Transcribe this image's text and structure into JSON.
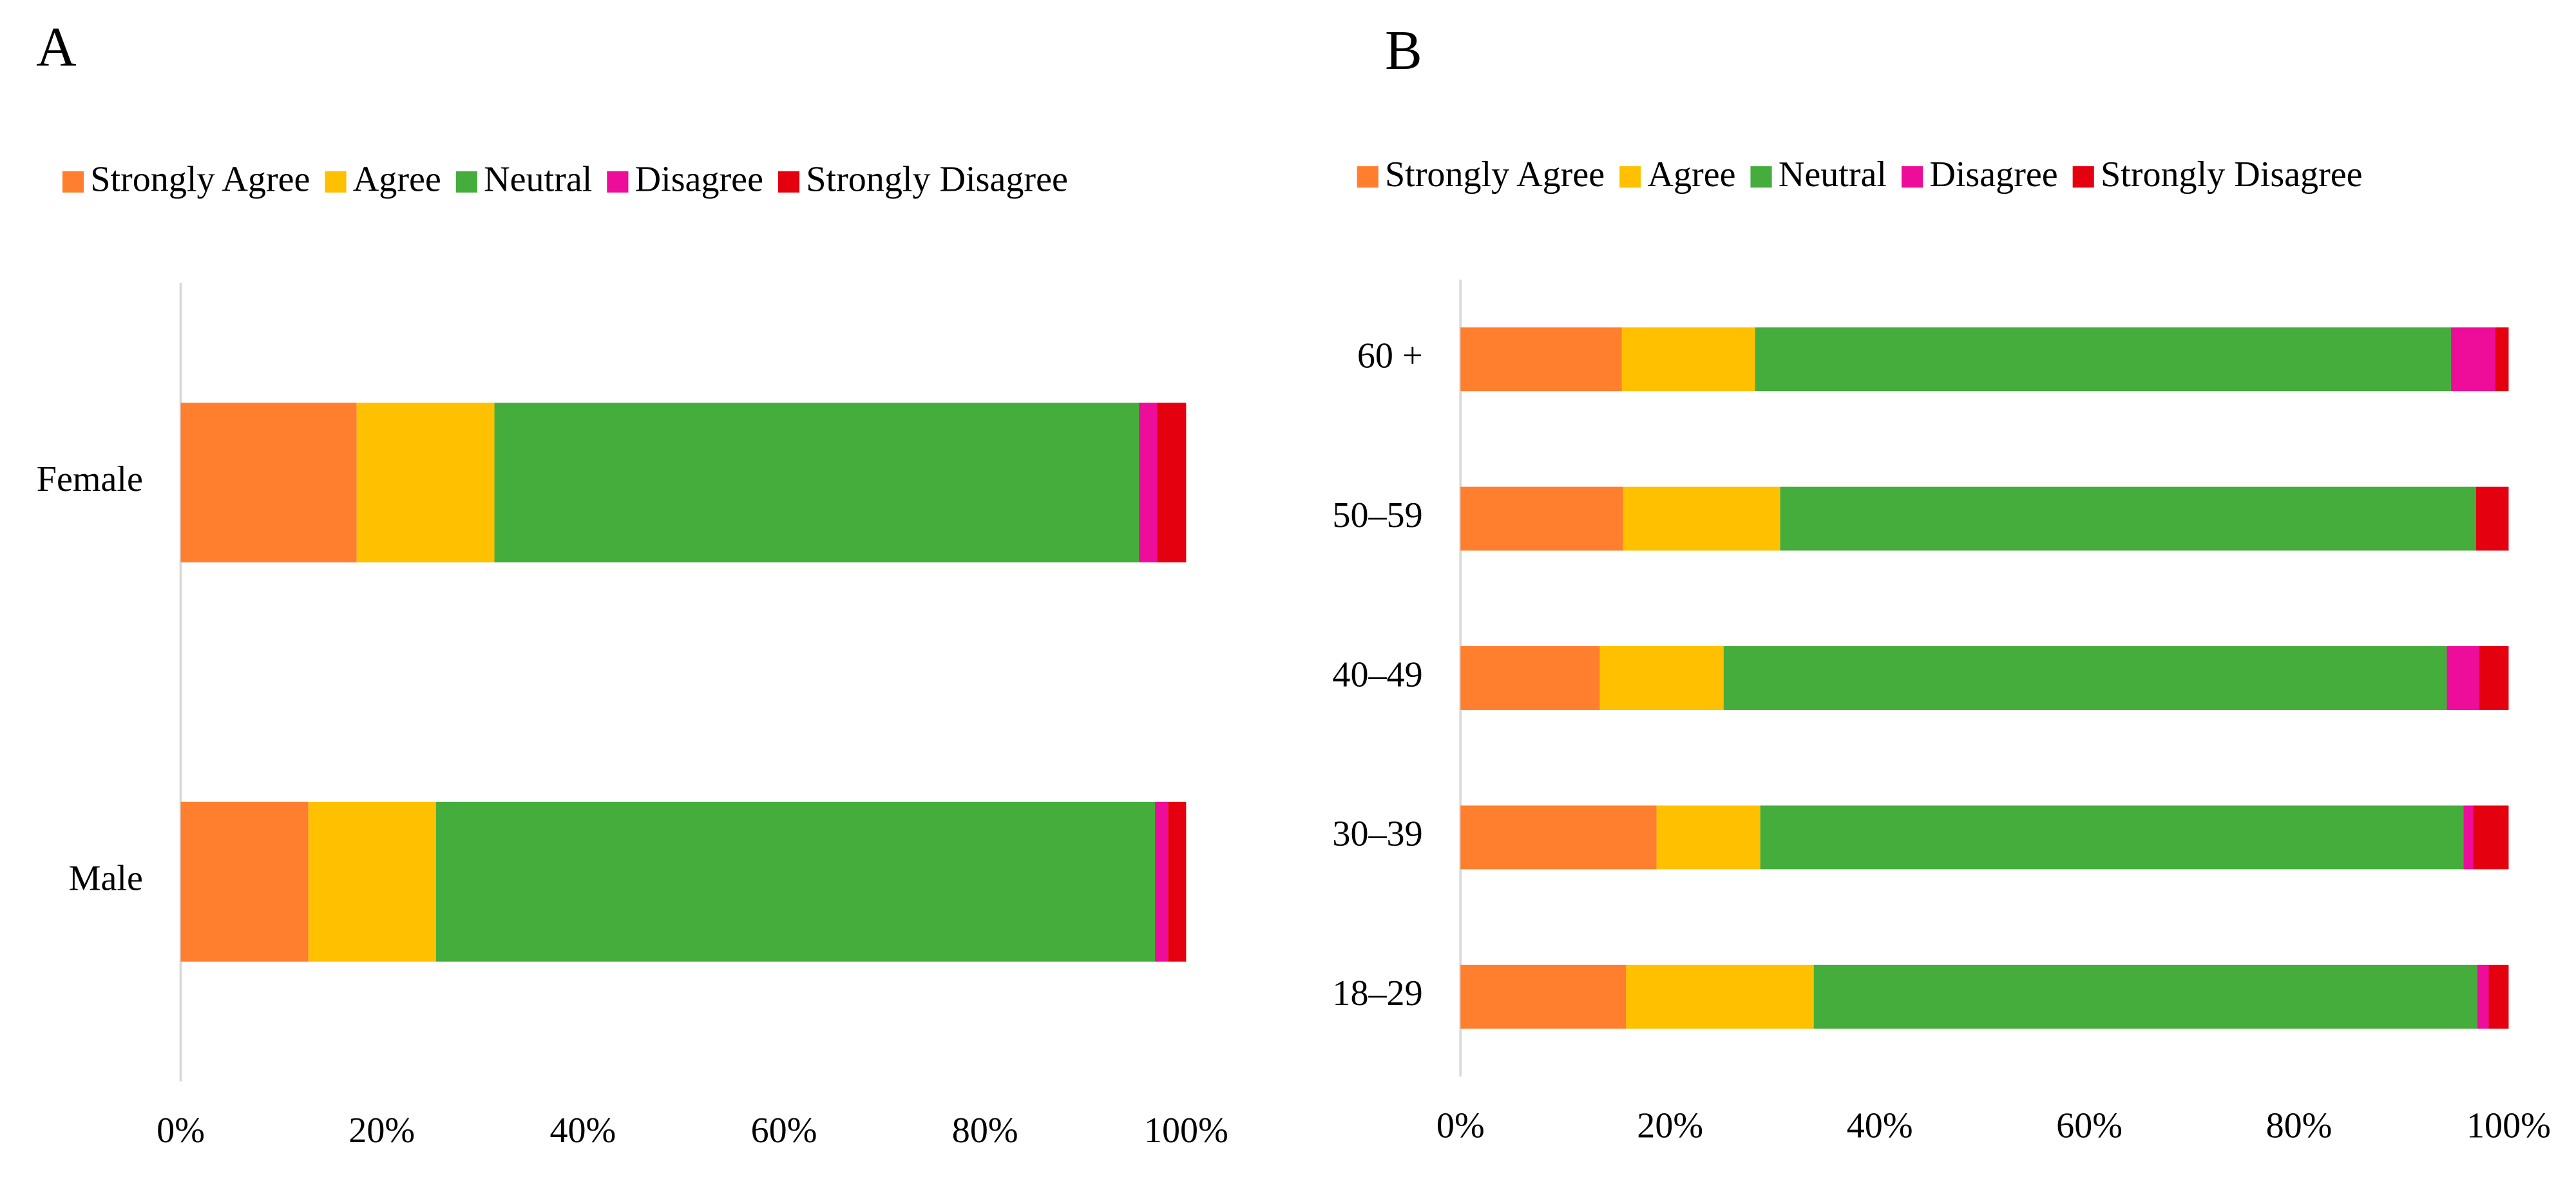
{
  "chart_data": [
    {
      "type": "stacked-bar",
      "orientation": "horizontal",
      "title": "A",
      "categories": [
        "Female",
        "Male"
      ],
      "series": [
        {
          "name": "Strongly Agree",
          "color": "#ff7f2e",
          "values": [
            17.5,
            12.7
          ]
        },
        {
          "name": "Agree",
          "color": "#ffc000",
          "values": [
            13.7,
            12.7
          ]
        },
        {
          "name": "Neutral",
          "color": "#45ad3c",
          "values": [
            64.1,
            71.5
          ]
        },
        {
          "name": "Disagree",
          "color": "#ee0c9a",
          "values": [
            1.8,
            1.3
          ]
        },
        {
          "name": "Strongly Disagree",
          "color": "#e5000f",
          "values": [
            2.9,
            1.8
          ]
        }
      ],
      "xlim": [
        0,
        100
      ],
      "xticks": [
        {
          "value": 0,
          "label": "0%"
        },
        {
          "value": 20,
          "label": "20%"
        },
        {
          "value": 40,
          "label": "40%"
        },
        {
          "value": 60,
          "label": "60%"
        },
        {
          "value": 80,
          "label": "80%"
        },
        {
          "value": 100,
          "label": "100%"
        }
      ],
      "legend": "top",
      "grid": false
    },
    {
      "type": "stacked-bar",
      "orientation": "horizontal",
      "title": "B",
      "categories": [
        "60 +",
        "50–59",
        "40–49",
        "30–39",
        "18–29"
      ],
      "series": [
        {
          "name": "Strongly Agree",
          "color": "#ff7f2e",
          "values": [
            15.4,
            15.5,
            13.3,
            18.7,
            15.8
          ]
        },
        {
          "name": "Agree",
          "color": "#ffc000",
          "values": [
            12.7,
            15.0,
            11.8,
            9.9,
            17.9
          ]
        },
        {
          "name": "Neutral",
          "color": "#45ad3c",
          "values": [
            66.4,
            66.4,
            69.0,
            67.1,
            63.3
          ]
        },
        {
          "name": "Disagree",
          "color": "#ee0c9a",
          "values": [
            4.2,
            0,
            3.1,
            0.9,
            1.1
          ]
        },
        {
          "name": "Strongly Disagree",
          "color": "#e5000f",
          "values": [
            1.3,
            3.1,
            2.8,
            3.4,
            1.9
          ]
        }
      ],
      "xlim": [
        0,
        100
      ],
      "xticks": [
        {
          "value": 0,
          "label": "0%"
        },
        {
          "value": 20,
          "label": "20%"
        },
        {
          "value": 40,
          "label": "40%"
        },
        {
          "value": 60,
          "label": "60%"
        },
        {
          "value": 80,
          "label": "80%"
        },
        {
          "value": 100,
          "label": "100%"
        }
      ],
      "legend": "top",
      "grid": false
    }
  ]
}
